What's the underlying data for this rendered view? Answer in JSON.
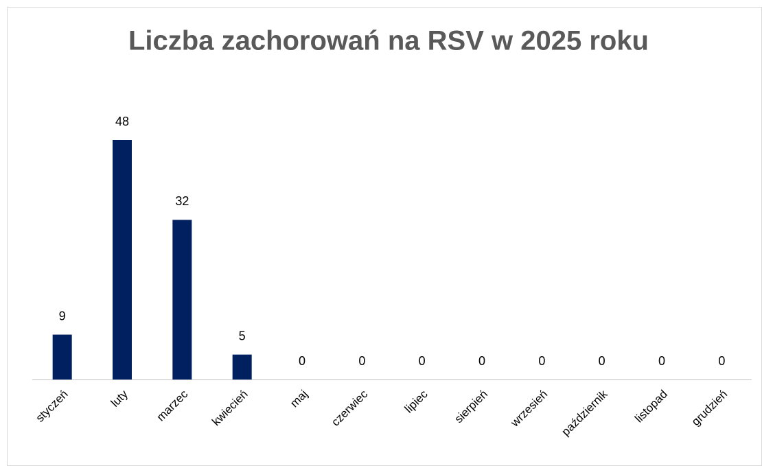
{
  "chart_data": {
    "type": "bar",
    "title": "Liczba zachorowań na RSV w 2025 roku",
    "categories": [
      "styczeń",
      "luty",
      "marzec",
      "kwiecień",
      "maj",
      "czerwiec",
      "lipiec",
      "sierpień",
      "wrzesień",
      "październik",
      "listopad",
      "grudzień"
    ],
    "values": [
      9,
      48,
      32,
      5,
      0,
      0,
      0,
      0,
      0,
      0,
      0,
      0
    ],
    "color": "#002060",
    "data_labels": true,
    "grid": false
  }
}
